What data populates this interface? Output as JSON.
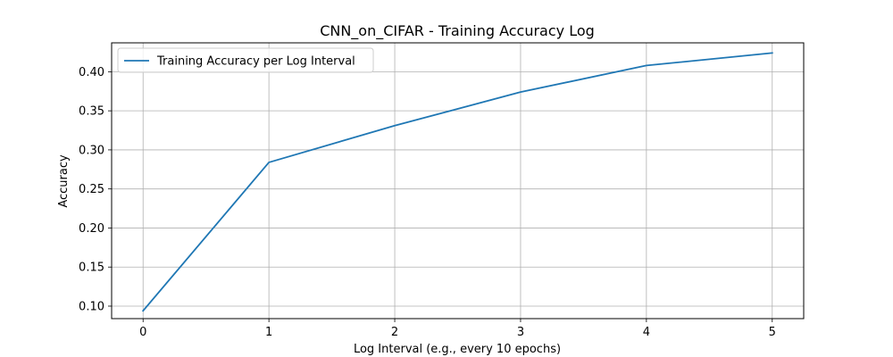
{
  "chart_data": {
    "type": "line",
    "title": "CNN_on_CIFAR - Training Accuracy Log",
    "xlabel": "Log Interval (e.g., every 10 epochs)",
    "ylabel": "Accuracy",
    "x": [
      0,
      1,
      2,
      3,
      4,
      5
    ],
    "xlim": [
      -0.25,
      5.25
    ],
    "ylim": [
      0.084,
      0.437
    ],
    "xticks": [
      0,
      1,
      2,
      3,
      4,
      5
    ],
    "yticks": [
      0.1,
      0.15,
      0.2,
      0.25,
      0.3,
      0.35,
      0.4
    ],
    "grid": true,
    "legend_position": "top-left",
    "series": [
      {
        "name": "Training Accuracy per Log Interval",
        "color": "#1f77b4",
        "values": [
          0.094,
          0.284,
          0.331,
          0.374,
          0.408,
          0.424
        ]
      }
    ]
  }
}
